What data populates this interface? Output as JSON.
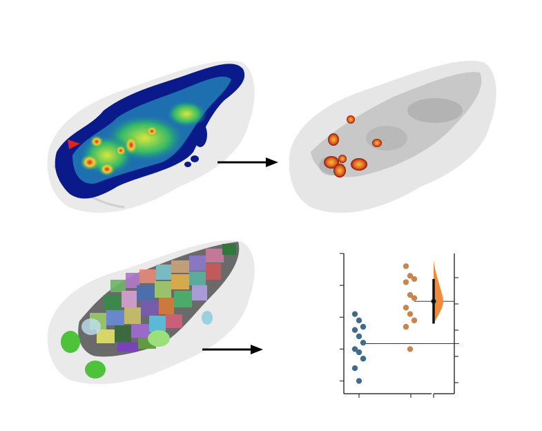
{
  "figure": {
    "panels": [
      "heatmap-brain",
      "thresholded-brain",
      "atlas-segmented-brain",
      "estimation-plot"
    ],
    "colors": {
      "background": "#ffffff",
      "brain_gray": "#d9d9d9",
      "heat_low": "#0a1a8a",
      "heat_mid": "#2bb34a",
      "heat_high": "#e0201a",
      "blob_red": "#c4281c",
      "blob_yellow": "#f4c038",
      "group_a": "#3f6b8c",
      "group_b": "#c9854e",
      "effect_fill": "#f08a3c",
      "arrow": "#000000",
      "marker": "#e2231a"
    },
    "icons": [
      "right-arrow-icon",
      "red-arrowhead-marker"
    ]
  },
  "chart_data": {
    "type": "scatter",
    "title": "",
    "xlabel": "",
    "ylabel": "",
    "series": [
      {
        "name": "",
        "color": "#3f6b8c",
        "values": [
          0.9,
          1.3,
          1.6,
          1.8,
          1.9,
          2.1,
          2.3,
          2.5,
          2.6,
          2.8,
          3.0
        ]
      },
      {
        "name": "",
        "color": "#c9854e",
        "values": [
          1.9,
          2.6,
          2.8,
          3.0,
          3.2,
          3.5,
          3.6,
          4.0,
          4.1,
          4.2,
          4.5
        ]
      }
    ],
    "effect_size": {
      "mean_difference": 1.1,
      "ci_low": 0.7,
      "ci_high": 1.5
    },
    "ylim": [
      0.5,
      4.9
    ],
    "grid": false,
    "legend": "none"
  }
}
